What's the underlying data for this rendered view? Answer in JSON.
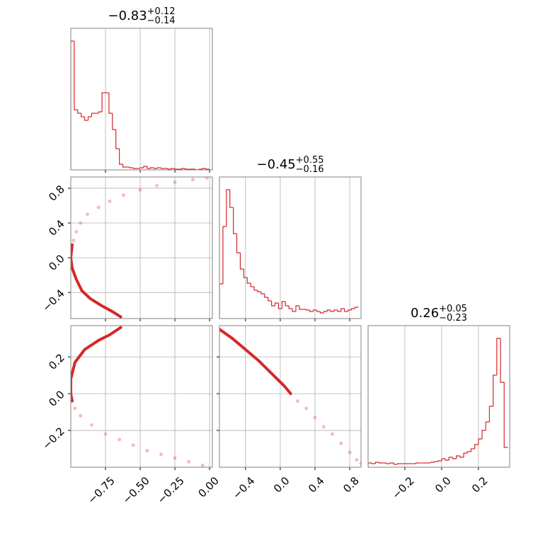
{
  "chart_data": {
    "type": "corner",
    "color": "#d62728",
    "grid": true,
    "parameters": [
      {
        "title": {
          "value": "−0.83",
          "upper": "+0.12",
          "lower": "−0.14"
        },
        "lim": [
          -1.0,
          0.02
        ],
        "ticks": [
          {
            "value": -0.75,
            "label": "−0.75"
          },
          {
            "value": -0.5,
            "label": "−0.50"
          },
          {
            "value": -0.25,
            "label": "−0.25"
          },
          {
            "value": 0.0,
            "label": "0.00"
          }
        ],
        "ylim": [
          0,
          200
        ],
        "bins": [
          -1,
          -0.975,
          -0.95,
          -0.925,
          -0.9,
          -0.875,
          -0.85,
          -0.825,
          -0.8,
          -0.775,
          -0.75,
          -0.725,
          -0.7,
          -0.675,
          -0.65,
          -0.625,
          -0.6,
          -0.575,
          -0.55,
          -0.525,
          -0.5,
          -0.475,
          -0.45,
          -0.425,
          -0.4,
          -0.375,
          -0.35,
          -0.325,
          -0.3,
          -0.275,
          -0.25,
          -0.225,
          -0.2,
          -0.175,
          -0.15,
          -0.125,
          -0.1,
          -0.075,
          -0.05,
          -0.025,
          0
        ],
        "values": [
          182,
          85,
          80,
          75,
          70,
          75,
          80,
          80,
          82,
          109,
          109,
          80,
          57,
          30,
          8,
          4,
          4,
          3,
          2,
          2,
          3,
          5,
          2,
          3,
          2,
          3,
          2,
          2,
          1,
          2,
          1,
          1,
          2,
          1,
          1,
          1,
          0,
          1,
          2,
          1
        ]
      },
      {
        "title": {
          "value": "−0.45",
          "upper": "+0.55",
          "lower": "−0.16"
        },
        "lim": [
          -0.7,
          0.93
        ],
        "ticks": [
          {
            "value": -0.4,
            "label": "−0.4"
          },
          {
            "value": 0.0,
            "label": "0.0"
          },
          0.4,
          0.8
        ],
        "ylim": [
          0,
          200
        ],
        "bins": [
          -0.7,
          -0.66,
          -0.62,
          -0.58,
          -0.54,
          -0.5,
          -0.46,
          -0.42,
          -0.38,
          -0.34,
          -0.3,
          -0.26,
          -0.22,
          -0.18,
          -0.14,
          -0.1,
          -0.06,
          -0.02,
          0.02,
          0.06,
          0.1,
          0.14,
          0.18,
          0.22,
          0.26,
          0.3,
          0.34,
          0.38,
          0.42,
          0.46,
          0.5,
          0.54,
          0.58,
          0.62,
          0.66,
          0.7,
          0.74,
          0.78,
          0.82,
          0.86,
          0.9
        ],
        "values": [
          49,
          130,
          182,
          157,
          120,
          93,
          70,
          58,
          50,
          45,
          40,
          38,
          35,
          30,
          25,
          18,
          22,
          14,
          24,
          18,
          14,
          10,
          18,
          13,
          13,
          12,
          10,
          12,
          10,
          8,
          10,
          12,
          10,
          12,
          10,
          14,
          10,
          12,
          14,
          16
        ]
      },
      {
        "title": {
          "value": "0.26",
          "upper": "+0.05",
          "lower": "−0.23"
        },
        "lim": [
          -0.4,
          0.37
        ],
        "ticks": [
          {
            "value": -0.2,
            "label": "−0.2"
          },
          {
            "value": 0.0,
            "label": "0.0"
          },
          0.2
        ],
        "ylim": [
          0,
          200
        ],
        "bins": [
          -0.4,
          -0.38,
          -0.36,
          -0.34,
          -0.32,
          -0.3,
          -0.28,
          -0.26,
          -0.24,
          -0.22,
          -0.2,
          -0.18,
          -0.16,
          -0.14,
          -0.12,
          -0.1,
          -0.08,
          -0.06,
          -0.04,
          -0.02,
          0,
          0.02,
          0.04,
          0.06,
          0.08,
          0.1,
          0.12,
          0.14,
          0.16,
          0.18,
          0.2,
          0.22,
          0.24,
          0.26,
          0.28,
          0.3,
          0.32,
          0.34,
          0.36
        ],
        "values": [
          6,
          5,
          7,
          6,
          6,
          5,
          6,
          4,
          5,
          5,
          5,
          5,
          5,
          6,
          6,
          6,
          6,
          7,
          8,
          9,
          12,
          10,
          14,
          12,
          16,
          14,
          20,
          22,
          26,
          32,
          40,
          52,
          64,
          86,
          130,
          182,
          120,
          28
        ]
      }
    ],
    "pairs": [
      {
        "contour": {
          "x": [
            -0.99,
            -1.0,
            -0.99,
            -0.96,
            -0.92,
            -0.86,
            -0.78,
            -0.7,
            -0.64
          ],
          "y": [
            0.15,
            0.0,
            -0.12,
            -0.25,
            -0.38,
            -0.47,
            -0.55,
            -0.62,
            -0.68
          ]
        },
        "samples": {
          "x": [
            -0.98,
            -0.96,
            -0.93,
            -0.88,
            -0.8,
            -0.72,
            -0.62,
            -0.5,
            -0.38,
            -0.25,
            -0.12,
            -0.02
          ],
          "y": [
            0.2,
            0.3,
            0.4,
            0.5,
            0.58,
            0.65,
            0.72,
            0.78,
            0.83,
            0.87,
            0.9,
            0.92
          ]
        }
      },
      {
        "contour": {
          "x": [
            -0.64,
            -0.72,
            -0.8,
            -0.9,
            -0.97,
            -1.0,
            -1.0,
            -0.99
          ],
          "y": [
            0.36,
            0.32,
            0.29,
            0.24,
            0.17,
            0.08,
            0.0,
            -0.04
          ]
        },
        "samples": {
          "x": [
            -0.97,
            -0.93,
            -0.85,
            -0.75,
            -0.65,
            -0.55,
            -0.45,
            -0.35,
            -0.25,
            -0.15,
            -0.05
          ],
          "y": [
            -0.08,
            -0.12,
            -0.17,
            -0.22,
            -0.25,
            -0.28,
            -0.31,
            -0.33,
            -0.35,
            -0.37,
            -0.39
          ]
        }
      },
      {
        "contour": {
          "x": [
            -0.7,
            -0.55,
            -0.4,
            -0.25,
            -0.1,
            0.05,
            0.12
          ],
          "y": [
            0.35,
            0.3,
            0.24,
            0.18,
            0.11,
            0.04,
            0.0
          ]
        },
        "samples": {
          "x": [
            0.2,
            0.3,
            0.4,
            0.5,
            0.6,
            0.7,
            0.8,
            0.88,
            0.93
          ],
          "y": [
            -0.04,
            -0.08,
            -0.13,
            -0.18,
            -0.22,
            -0.27,
            -0.32,
            -0.36,
            -0.38
          ]
        }
      }
    ]
  }
}
